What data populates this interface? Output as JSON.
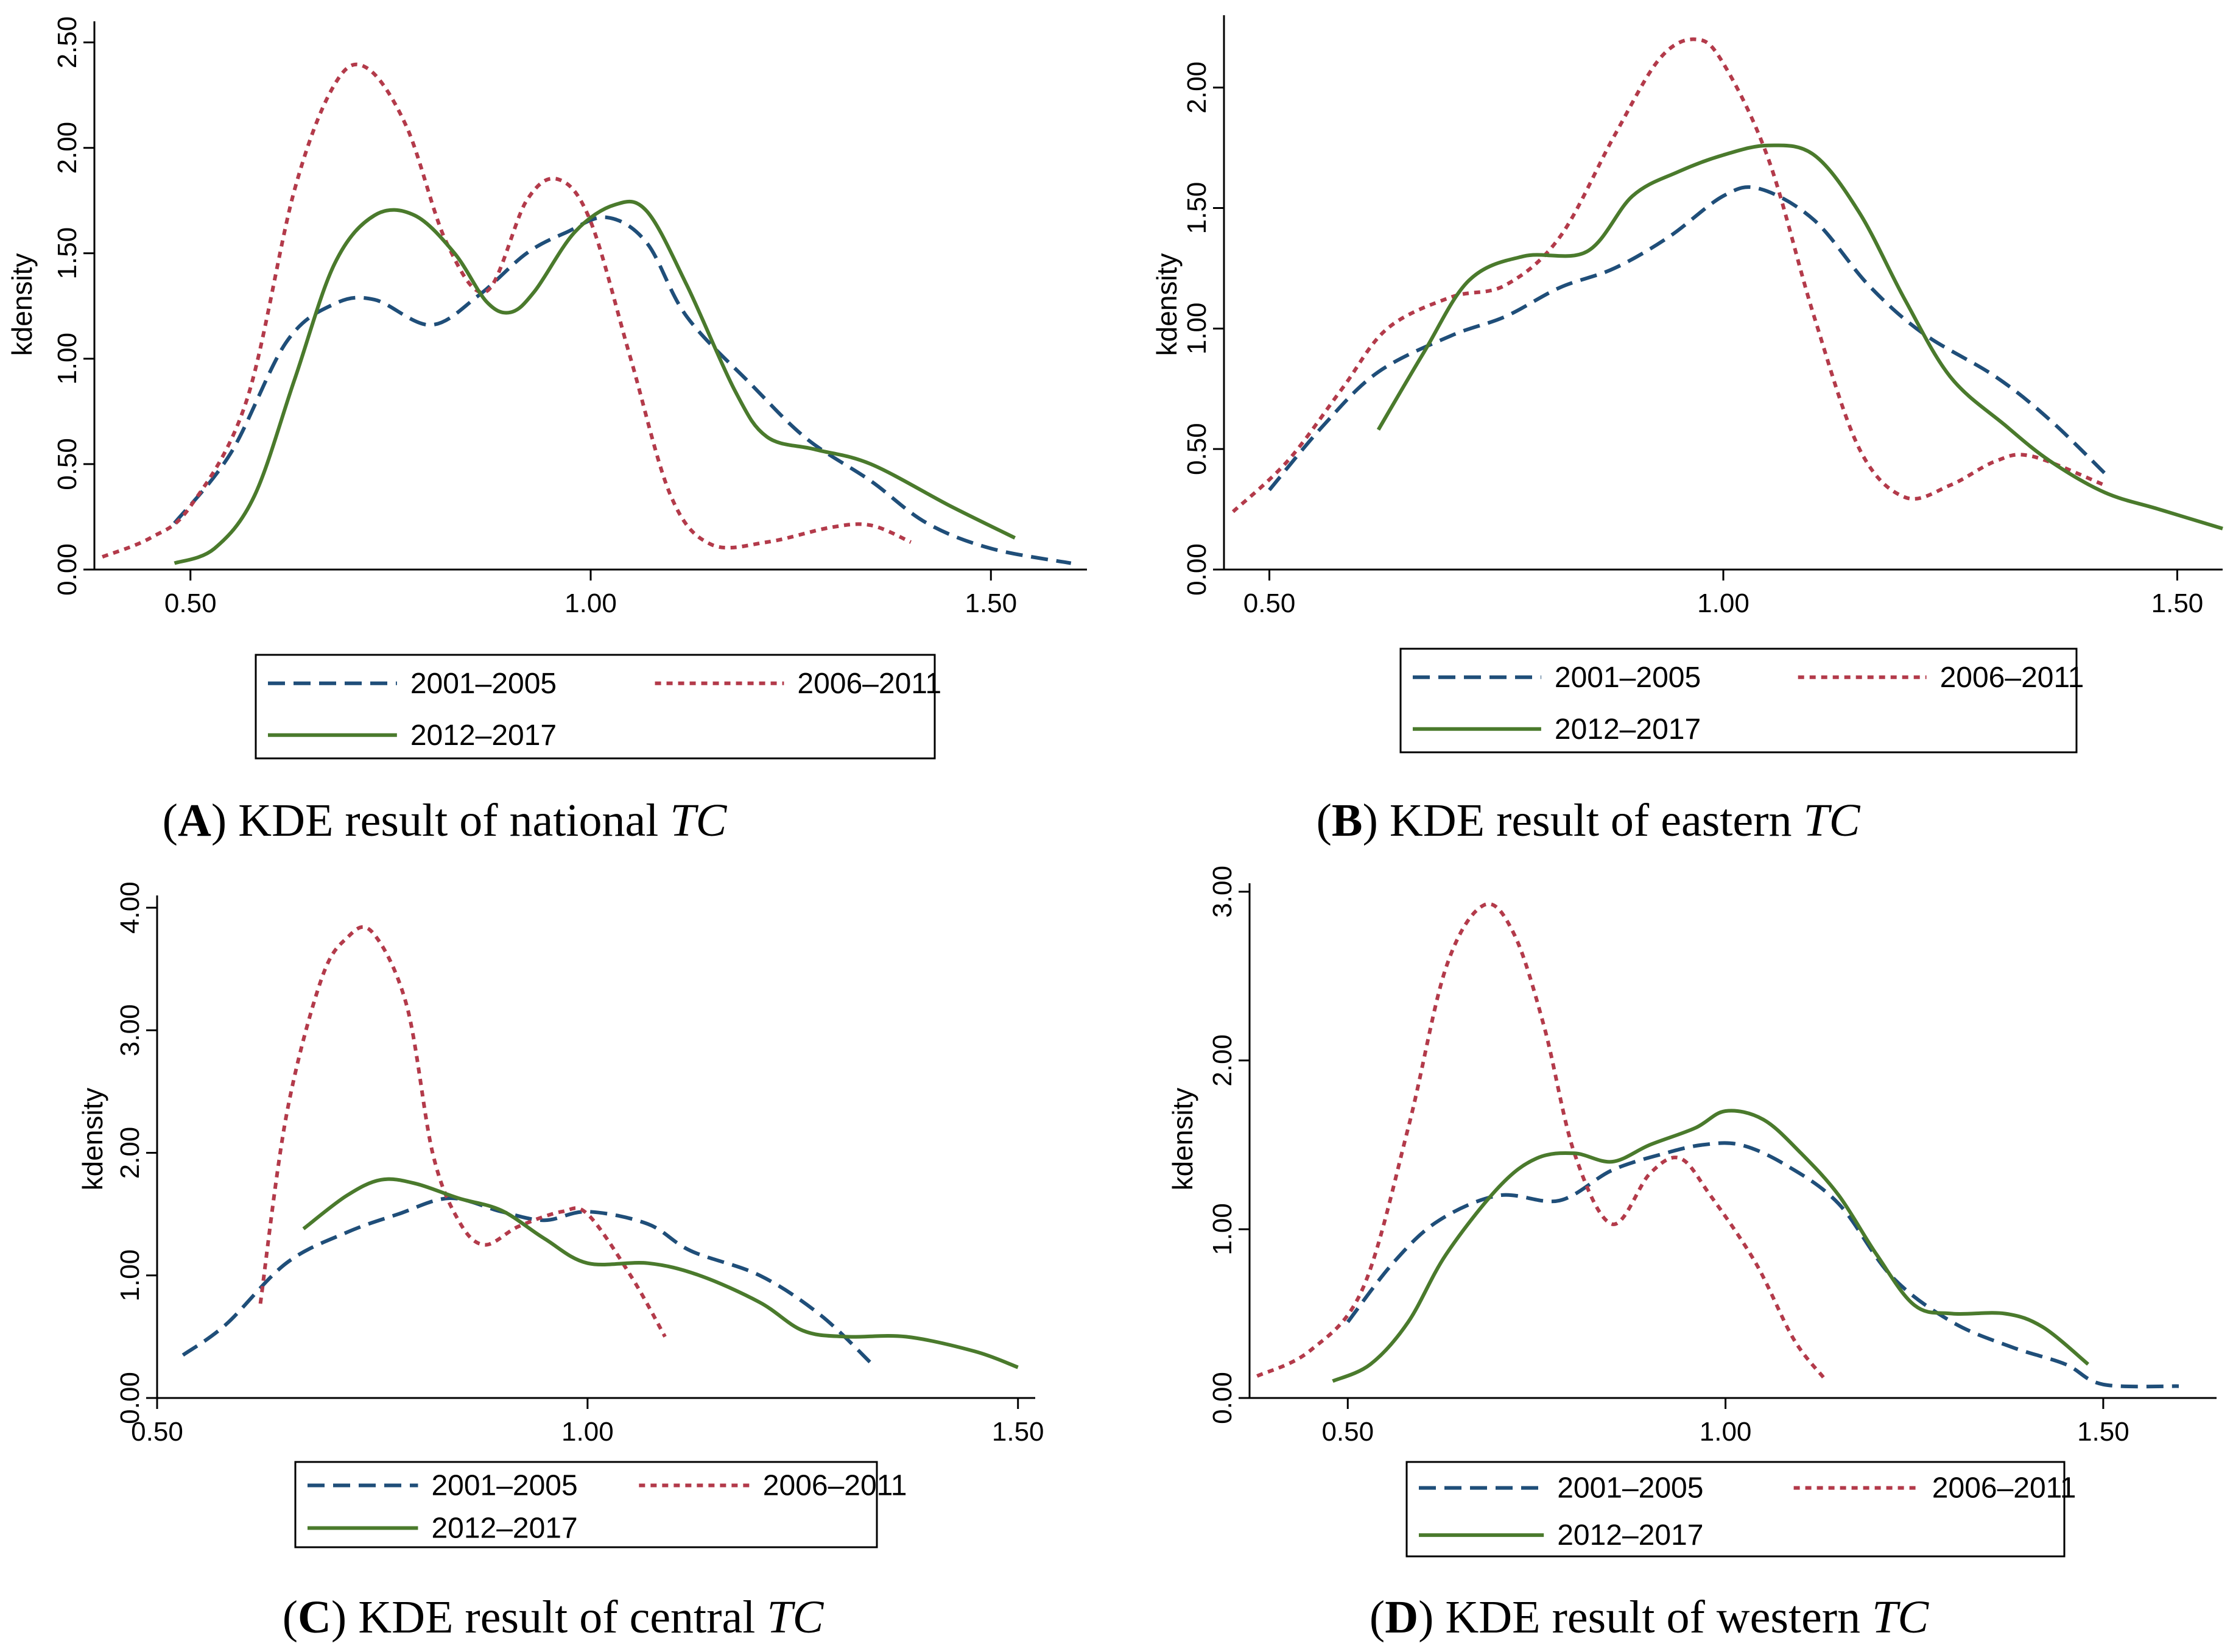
{
  "chart_data": [
    {
      "type": "line",
      "caption": {
        "prefix": "(",
        "letter": "A",
        "suffix": ") KDE result of ",
        "region": "national",
        "var": "TC"
      },
      "ylabel": "kdensity",
      "xlabel": "",
      "xlim": [
        0.38,
        1.62
      ],
      "ylim": [
        0,
        2.6
      ],
      "xticks": [
        0.5,
        1.0,
        1.5
      ],
      "xtick_labels": [
        "0.50",
        "1.00",
        "1.50"
      ],
      "yticks": [
        0,
        0.5,
        1.0,
        1.5,
        2.0,
        2.5
      ],
      "ytick_labels": [
        "0.00",
        "0.50",
        "1.00",
        "1.50",
        "2.00",
        "2.50"
      ],
      "series": [
        {
          "name": "2001–2005",
          "color": "#1f4e79",
          "style": "dashed",
          "points": [
            [
              0.48,
              0.22
            ],
            [
              0.55,
              0.55
            ],
            [
              0.62,
              1.08
            ],
            [
              0.68,
              1.26
            ],
            [
              0.73,
              1.28
            ],
            [
              0.8,
              1.16
            ],
            [
              0.86,
              1.3
            ],
            [
              0.92,
              1.5
            ],
            [
              0.97,
              1.6
            ],
            [
              1.02,
              1.67
            ],
            [
              1.07,
              1.55
            ],
            [
              1.12,
              1.2
            ],
            [
              1.2,
              0.88
            ],
            [
              1.27,
              0.62
            ],
            [
              1.35,
              0.42
            ],
            [
              1.42,
              0.22
            ],
            [
              1.5,
              0.1
            ],
            [
              1.6,
              0.03
            ]
          ]
        },
        {
          "name": "2006–2011",
          "color": "#b33a4a",
          "style": "dotted",
          "points": [
            [
              0.39,
              0.06
            ],
            [
              0.45,
              0.15
            ],
            [
              0.5,
              0.3
            ],
            [
              0.57,
              0.8
            ],
            [
              0.63,
              1.8
            ],
            [
              0.68,
              2.3
            ],
            [
              0.72,
              2.38
            ],
            [
              0.77,
              2.1
            ],
            [
              0.82,
              1.55
            ],
            [
              0.87,
              1.32
            ],
            [
              0.92,
              1.75
            ],
            [
              0.96,
              1.85
            ],
            [
              1.0,
              1.65
            ],
            [
              1.05,
              1.0
            ],
            [
              1.1,
              0.35
            ],
            [
              1.15,
              0.12
            ],
            [
              1.22,
              0.13
            ],
            [
              1.3,
              0.2
            ],
            [
              1.35,
              0.21
            ],
            [
              1.4,
              0.13
            ]
          ]
        },
        {
          "name": "2012–2017",
          "color": "#4a7a2c",
          "style": "solid",
          "points": [
            [
              0.48,
              0.03
            ],
            [
              0.53,
              0.1
            ],
            [
              0.58,
              0.35
            ],
            [
              0.63,
              0.9
            ],
            [
              0.68,
              1.45
            ],
            [
              0.73,
              1.68
            ],
            [
              0.78,
              1.68
            ],
            [
              0.83,
              1.5
            ],
            [
              0.87,
              1.27
            ],
            [
              0.9,
              1.22
            ],
            [
              0.93,
              1.32
            ],
            [
              0.98,
              1.6
            ],
            [
              1.03,
              1.73
            ],
            [
              1.07,
              1.7
            ],
            [
              1.12,
              1.35
            ],
            [
              1.18,
              0.85
            ],
            [
              1.22,
              0.63
            ],
            [
              1.28,
              0.57
            ],
            [
              1.35,
              0.5
            ],
            [
              1.45,
              0.3
            ],
            [
              1.53,
              0.15
            ]
          ]
        }
      ]
    },
    {
      "type": "line",
      "caption": {
        "prefix": "(",
        "letter": "B",
        "suffix": ") KDE result of ",
        "region": "eastern",
        "var": "TC"
      },
      "ylabel": "kdensity",
      "xlabel": "",
      "xlim": [
        0.45,
        1.55
      ],
      "ylim": [
        0,
        2.3
      ],
      "xticks": [
        0.5,
        1.0,
        1.5
      ],
      "xtick_labels": [
        "0.50",
        "1.00",
        "1.50"
      ],
      "yticks": [
        0,
        0.5,
        1.0,
        1.5,
        2.0
      ],
      "ytick_labels": [
        "0.00",
        "0.50",
        "1.00",
        "1.50",
        "2.00"
      ],
      "series": [
        {
          "name": "2001–2005",
          "color": "#1f4e79",
          "style": "dashed",
          "points": [
            [
              0.5,
              0.33
            ],
            [
              0.56,
              0.6
            ],
            [
              0.62,
              0.82
            ],
            [
              0.7,
              0.97
            ],
            [
              0.76,
              1.05
            ],
            [
              0.82,
              1.17
            ],
            [
              0.88,
              1.25
            ],
            [
              0.94,
              1.38
            ],
            [
              1.0,
              1.55
            ],
            [
              1.04,
              1.58
            ],
            [
              1.1,
              1.45
            ],
            [
              1.16,
              1.18
            ],
            [
              1.22,
              0.98
            ],
            [
              1.3,
              0.8
            ],
            [
              1.36,
              0.62
            ],
            [
              1.42,
              0.4
            ]
          ]
        },
        {
          "name": "2006–2011",
          "color": "#b33a4a",
          "style": "dotted",
          "points": [
            [
              0.46,
              0.24
            ],
            [
              0.52,
              0.45
            ],
            [
              0.58,
              0.75
            ],
            [
              0.63,
              1.0
            ],
            [
              0.7,
              1.13
            ],
            [
              0.76,
              1.18
            ],
            [
              0.82,
              1.38
            ],
            [
              0.88,
              1.8
            ],
            [
              0.93,
              2.12
            ],
            [
              0.97,
              2.2
            ],
            [
              1.0,
              2.1
            ],
            [
              1.05,
              1.7
            ],
            [
              1.1,
              1.05
            ],
            [
              1.15,
              0.5
            ],
            [
              1.2,
              0.3
            ],
            [
              1.25,
              0.35
            ],
            [
              1.3,
              0.45
            ],
            [
              1.34,
              0.47
            ],
            [
              1.42,
              0.35
            ]
          ]
        },
        {
          "name": "2012–2017",
          "color": "#4a7a2c",
          "style": "solid",
          "points": [
            [
              0.62,
              0.58
            ],
            [
              0.67,
              0.9
            ],
            [
              0.72,
              1.2
            ],
            [
              0.78,
              1.3
            ],
            [
              0.85,
              1.32
            ],
            [
              0.9,
              1.55
            ],
            [
              0.95,
              1.65
            ],
            [
              1.0,
              1.72
            ],
            [
              1.05,
              1.76
            ],
            [
              1.1,
              1.72
            ],
            [
              1.15,
              1.48
            ],
            [
              1.2,
              1.12
            ],
            [
              1.25,
              0.8
            ],
            [
              1.31,
              0.6
            ],
            [
              1.36,
              0.45
            ],
            [
              1.42,
              0.32
            ],
            [
              1.48,
              0.25
            ],
            [
              1.55,
              0.17
            ]
          ]
        }
      ]
    },
    {
      "type": "line",
      "caption": {
        "prefix": "(",
        "letter": "C",
        "suffix": ") KDE result of ",
        "region": "central",
        "var": "TC"
      },
      "ylabel": "kdensity",
      "xlabel": "",
      "xlim": [
        0.5,
        1.52
      ],
      "ylim": [
        0,
        4.1
      ],
      "xticks": [
        0.5,
        1.0,
        1.5
      ],
      "xtick_labels": [
        "0.50",
        "1.00",
        "1.50"
      ],
      "yticks": [
        0,
        1.0,
        2.0,
        3.0,
        4.0
      ],
      "ytick_labels": [
        "0.00",
        "1.00",
        "2.00",
        "3.00",
        "4.00"
      ],
      "series": [
        {
          "name": "2001–2005",
          "color": "#1f4e79",
          "style": "dashed",
          "points": [
            [
              0.53,
              0.35
            ],
            [
              0.58,
              0.6
            ],
            [
              0.65,
              1.1
            ],
            [
              0.72,
              1.35
            ],
            [
              0.78,
              1.5
            ],
            [
              0.84,
              1.63
            ],
            [
              0.9,
              1.52
            ],
            [
              0.95,
              1.45
            ],
            [
              1.0,
              1.52
            ],
            [
              1.07,
              1.42
            ],
            [
              1.12,
              1.2
            ],
            [
              1.2,
              1.0
            ],
            [
              1.27,
              0.68
            ],
            [
              1.33,
              0.28
            ]
          ]
        },
        {
          "name": "2006–2011",
          "color": "#b33a4a",
          "style": "dotted",
          "points": [
            [
              0.62,
              0.77
            ],
            [
              0.65,
              2.3
            ],
            [
              0.69,
              3.4
            ],
            [
              0.72,
              3.75
            ],
            [
              0.75,
              3.8
            ],
            [
              0.79,
              3.2
            ],
            [
              0.82,
              2.0
            ],
            [
              0.85,
              1.45
            ],
            [
              0.88,
              1.25
            ],
            [
              0.92,
              1.4
            ],
            [
              0.97,
              1.52
            ],
            [
              1.0,
              1.5
            ],
            [
              1.05,
              1.0
            ],
            [
              1.09,
              0.5
            ]
          ]
        },
        {
          "name": "2012–2017",
          "color": "#4a7a2c",
          "style": "solid",
          "points": [
            [
              0.67,
              1.38
            ],
            [
              0.72,
              1.65
            ],
            [
              0.76,
              1.78
            ],
            [
              0.8,
              1.75
            ],
            [
              0.85,
              1.63
            ],
            [
              0.9,
              1.53
            ],
            [
              0.95,
              1.3
            ],
            [
              1.0,
              1.1
            ],
            [
              1.07,
              1.1
            ],
            [
              1.13,
              1.0
            ],
            [
              1.2,
              0.78
            ],
            [
              1.25,
              0.55
            ],
            [
              1.3,
              0.5
            ],
            [
              1.37,
              0.5
            ],
            [
              1.45,
              0.38
            ],
            [
              1.5,
              0.25
            ]
          ]
        }
      ]
    },
    {
      "type": "line",
      "caption": {
        "prefix": "(",
        "letter": "D",
        "suffix": ") KDE result of ",
        "region": "western",
        "var": "TC"
      },
      "ylabel": "kdensity",
      "xlabel": "",
      "xlim": [
        0.37,
        1.65
      ],
      "ylim": [
        0,
        3.05
      ],
      "xticks": [
        0.5,
        1.0,
        1.5
      ],
      "xtick_labels": [
        "0.50",
        "1.00",
        "1.50"
      ],
      "yticks": [
        0,
        1.0,
        2.0,
        3.0
      ],
      "ytick_labels": [
        "0.00",
        "1.00",
        "2.00",
        "3.00"
      ],
      "series": [
        {
          "name": "2001–2005",
          "color": "#1f4e79",
          "style": "dashed",
          "points": [
            [
              0.5,
              0.45
            ],
            [
              0.56,
              0.8
            ],
            [
              0.62,
              1.05
            ],
            [
              0.7,
              1.2
            ],
            [
              0.78,
              1.17
            ],
            [
              0.85,
              1.35
            ],
            [
              0.92,
              1.45
            ],
            [
              0.97,
              1.5
            ],
            [
              1.02,
              1.5
            ],
            [
              1.08,
              1.38
            ],
            [
              1.15,
              1.15
            ],
            [
              1.22,
              0.72
            ],
            [
              1.3,
              0.45
            ],
            [
              1.38,
              0.3
            ],
            [
              1.45,
              0.2
            ],
            [
              1.5,
              0.08
            ],
            [
              1.6,
              0.07
            ]
          ]
        },
        {
          "name": "2006–2011",
          "color": "#b33a4a",
          "style": "dotted",
          "points": [
            [
              0.38,
              0.13
            ],
            [
              0.45,
              0.28
            ],
            [
              0.52,
              0.65
            ],
            [
              0.58,
              1.6
            ],
            [
              0.63,
              2.55
            ],
            [
              0.68,
              2.92
            ],
            [
              0.72,
              2.75
            ],
            [
              0.76,
              2.2
            ],
            [
              0.8,
              1.45
            ],
            [
              0.85,
              1.03
            ],
            [
              0.9,
              1.33
            ],
            [
              0.94,
              1.42
            ],
            [
              0.98,
              1.2
            ],
            [
              1.04,
              0.8
            ],
            [
              1.09,
              0.35
            ],
            [
              1.13,
              0.12
            ]
          ]
        },
        {
          "name": "2012–2017",
          "color": "#4a7a2c",
          "style": "solid",
          "points": [
            [
              0.48,
              0.1
            ],
            [
              0.53,
              0.2
            ],
            [
              0.58,
              0.45
            ],
            [
              0.63,
              0.85
            ],
            [
              0.7,
              1.25
            ],
            [
              0.75,
              1.42
            ],
            [
              0.8,
              1.45
            ],
            [
              0.85,
              1.4
            ],
            [
              0.9,
              1.5
            ],
            [
              0.96,
              1.6
            ],
            [
              1.0,
              1.7
            ],
            [
              1.05,
              1.65
            ],
            [
              1.1,
              1.45
            ],
            [
              1.15,
              1.2
            ],
            [
              1.2,
              0.85
            ],
            [
              1.25,
              0.55
            ],
            [
              1.3,
              0.5
            ],
            [
              1.37,
              0.5
            ],
            [
              1.42,
              0.42
            ],
            [
              1.48,
              0.2
            ]
          ]
        }
      ]
    }
  ]
}
